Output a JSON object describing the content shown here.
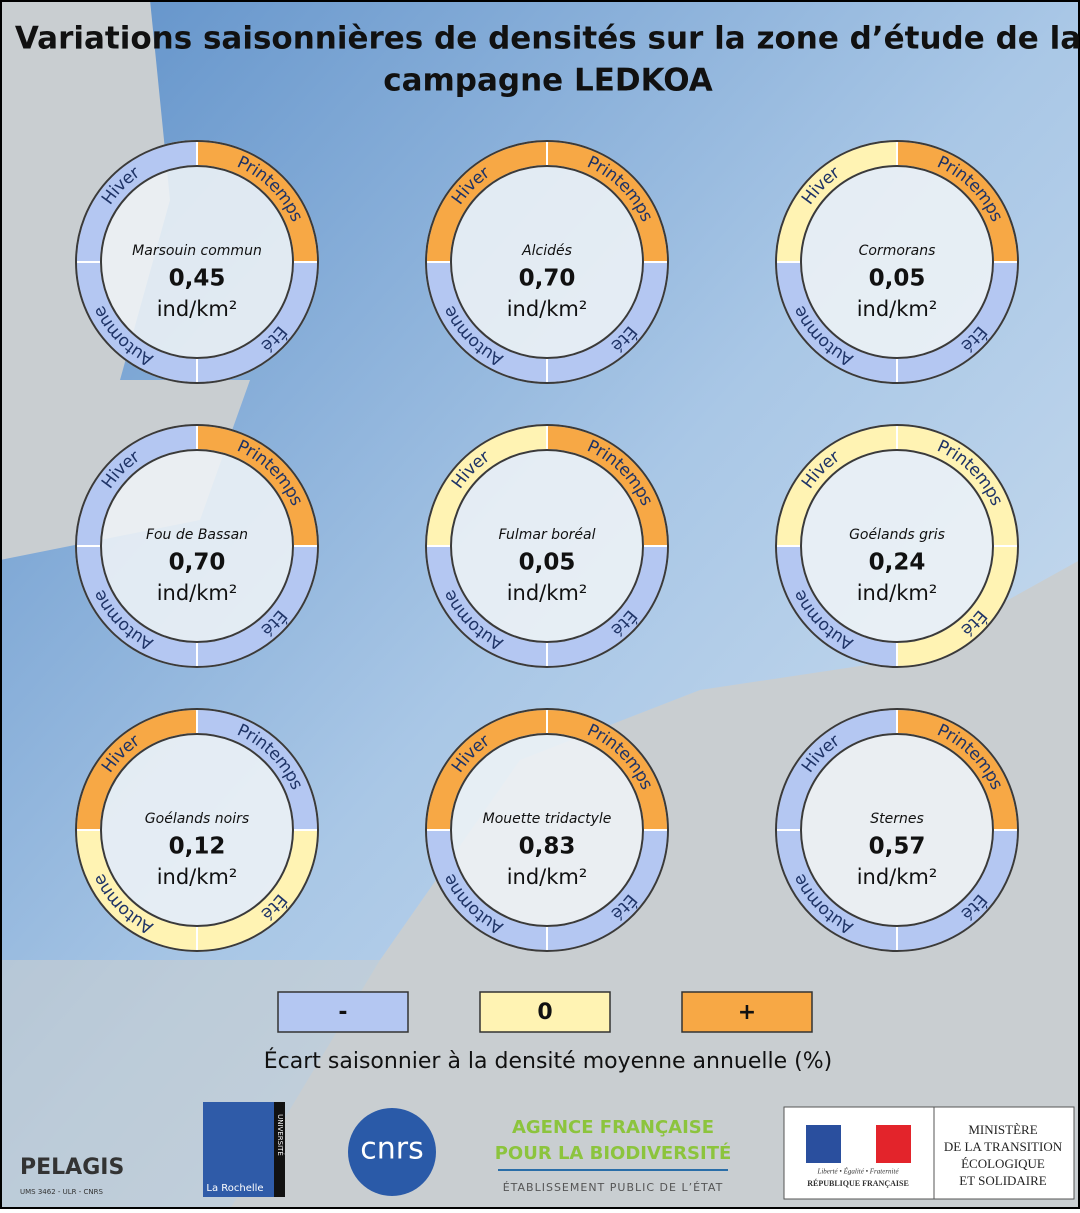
{
  "title": [
    "Variations saisonnières de densités sur la zone d’étude de la",
    "campagne LEDKOA"
  ],
  "seasons": [
    "Hiver",
    "Printemps",
    "Été",
    "Automne"
  ],
  "unit": "ind/km²",
  "species": [
    {
      "name": "Marsouin commun",
      "density": "0,45",
      "levels": [
        "-",
        "+",
        "-",
        "-"
      ]
    },
    {
      "name": "Alcidés",
      "density": "0,70",
      "levels": [
        "+",
        "+",
        "-",
        "-"
      ]
    },
    {
      "name": "Cormorans",
      "density": "0,05",
      "levels": [
        "0",
        "+",
        "-",
        "-"
      ]
    },
    {
      "name": "Fou de Bassan",
      "density": "0,70",
      "levels": [
        "-",
        "+",
        "-",
        "-"
      ]
    },
    {
      "name": "Fulmar boréal",
      "density": "0,05",
      "levels": [
        "0",
        "+",
        "-",
        "-"
      ]
    },
    {
      "name": "Goélands gris",
      "density": "0,24",
      "levels": [
        "0",
        "0",
        "0",
        "-"
      ]
    },
    {
      "name": "Goélands noirs",
      "density": "0,12",
      "levels": [
        "+",
        "-",
        "0",
        "0"
      ]
    },
    {
      "name": "Mouette tridactyle",
      "density": "0,83",
      "levels": [
        "+",
        "+",
        "-",
        "-"
      ]
    },
    {
      "name": "Sternes",
      "density": "0,57",
      "levels": [
        "-",
        "+",
        "-",
        "-"
      ]
    }
  ],
  "legend": {
    "items": [
      {
        "label": "-",
        "color": "#b4c7f2"
      },
      {
        "label": "0",
        "color": "#fff3b3"
      },
      {
        "label": "+",
        "color": "#f7a845"
      }
    ],
    "caption": "Écart saisonnier à la densité moyenne annuelle (%)"
  },
  "logos": {
    "pelagis": "PELAGIS",
    "pelagis_sub": "UMS 3462 - ULR - CNRS",
    "univ": "UNIVERSITÉ",
    "univ_city": "La Rochelle",
    "cnrs": "cnrs",
    "afb": [
      "AGENCE FRANÇAISE",
      "POUR LA BIODIVERSITÉ",
      "ÉTABLISSEMENT PUBLIC DE L’ÉTAT"
    ],
    "republique": [
      "Liberté • Égalité • Fraternité",
      "RÉPUBLIQUE FRANÇAISE"
    ],
    "ministere": [
      "MINISTÈRE",
      "DE LA TRANSITION",
      "ÉCOLOGIQUE",
      "ET SOLIDAIRE"
    ]
  }
}
